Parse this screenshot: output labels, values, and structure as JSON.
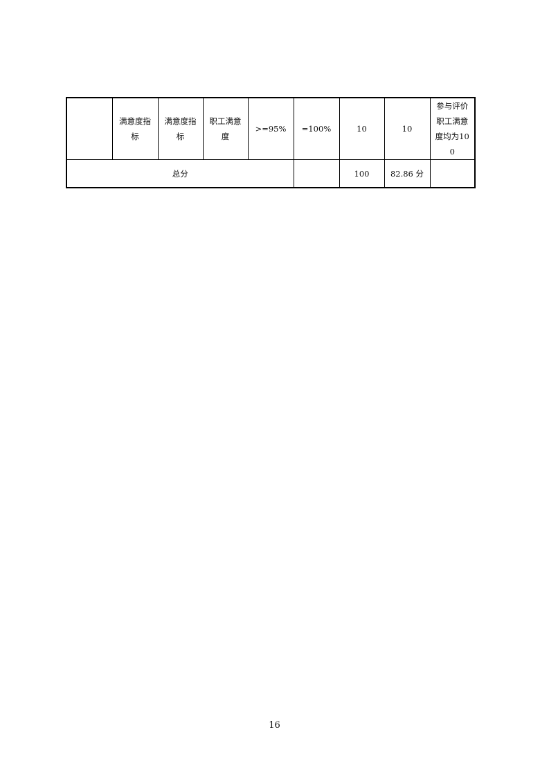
{
  "table": {
    "rows": [
      [
        "",
        "满意度指标",
        "满意度指标",
        "职工满意度",
        ">=95%",
        "=100%",
        "10",
        "10",
        "参与评价职工满意度均为100"
      ]
    ],
    "total": {
      "label": "总分",
      "blank": "",
      "full_score": "100",
      "score": "82.86 分",
      "note": ""
    }
  },
  "page_number": "16"
}
